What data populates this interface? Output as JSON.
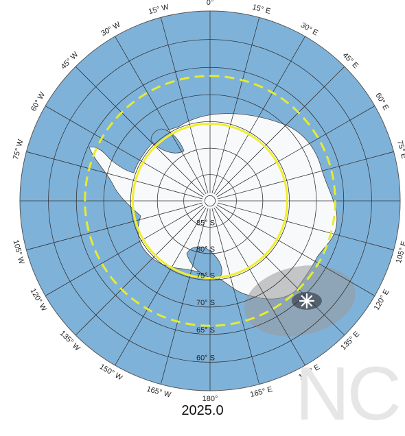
{
  "map": {
    "projection": "south-polar-stereographic",
    "ocean_color": "#7fb2d9",
    "land_color": "#f7f9fb",
    "grid_color": "#333333",
    "circle_solid_color": "#f2ee2a",
    "circle_dashed_color": "#e6ec2e",
    "uncertainty_outer_color": "#9a9a9a",
    "uncertainty_inner_color": "#4b5563",
    "pole_marker_icon": "star-burst-icon",
    "pole_marker_lon": 136,
    "pole_marker_lat": -64
  },
  "lon_labels": [
    "0°",
    "15° E",
    "30° E",
    "45° E",
    "60° E",
    "75° E",
    "105° E",
    "120° E",
    "135° E",
    "150° E",
    "165° E",
    "180°",
    "165° W",
    "150° W",
    "135° W",
    "120° W",
    "105° W",
    "75° W",
    "60° W",
    "45° W",
    "30° W",
    "15° W"
  ],
  "lat_labels": [
    "60° S",
    "65° S",
    "70° S",
    "75° S",
    "80° S",
    "85° S"
  ],
  "epoch": "2025.0",
  "watermark": "NC"
}
